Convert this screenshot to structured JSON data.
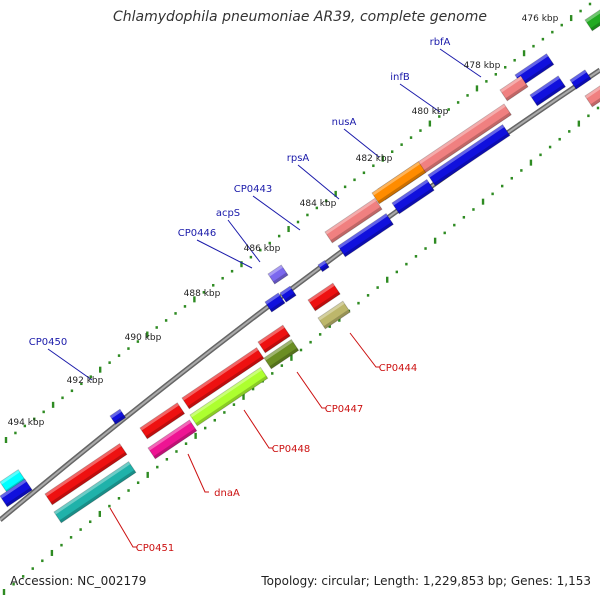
{
  "title": "Chlamydophila pneumoniae AR39, complete genome",
  "footer": {
    "accession": "Accession: NC_002179",
    "summary": "Topology: circular; Length: 1,229,853 bp; Genes: 1,153"
  },
  "ticks": [
    "476 kbp",
    "478 kbp",
    "480 kbp",
    "482 kbp",
    "484 kbp",
    "486 kbp",
    "488 kbp",
    "490 kbp",
    "492 kbp",
    "494 kbp"
  ],
  "forward_labels": [
    "rbfA",
    "infB",
    "nusA",
    "rpsA",
    "CP0443",
    "acpS",
    "CP0446",
    "CP0450"
  ],
  "reverse_labels": [
    "CP0444",
    "CP0447",
    "CP0448",
    "dnaA",
    "CP0451"
  ],
  "colors": {
    "forward_label": "#1a1aaa",
    "reverse_label": "#cc1111",
    "backbone": "#888888",
    "tick_dots": "#2e8b22",
    "blue": "#1010dd",
    "salmon": "#f08080",
    "orange": "#ff8c00",
    "red": "#ee1111",
    "purple": "#7b68ee",
    "olive": "#bdb76b",
    "dark_olive": "#6b8e23",
    "green_yellow": "#adff2f",
    "pink": "#ee1493",
    "teal": "#20b2aa",
    "cyan": "#00ffff",
    "green": "#22aa22"
  }
}
